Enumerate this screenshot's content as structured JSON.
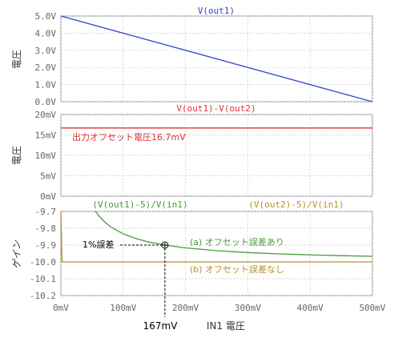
{
  "chart_data": [
    {
      "type": "line",
      "title": "V(out1)",
      "ylabel": "電圧",
      "ylim": [
        0,
        5
      ],
      "yticks": [
        0,
        1,
        2,
        3,
        4,
        5
      ],
      "ytick_labels": [
        "0.0V",
        "1.0V",
        "2.0V",
        "3.0V",
        "4.0V",
        "5.0V"
      ],
      "grid": true,
      "series": [
        {
          "name": "V(out1)",
          "color": "#3344cc",
          "points": [
            [
              0,
              5.0
            ],
            [
              500,
              0.0
            ]
          ]
        }
      ]
    },
    {
      "type": "line",
      "title": "V(out1)-V(out2)",
      "ylabel": "電圧",
      "ylim": [
        0,
        20
      ],
      "yticks": [
        0,
        5,
        10,
        15,
        20
      ],
      "ytick_labels": [
        "0mV",
        "5mV",
        "10mV",
        "15mV",
        "20mV"
      ],
      "grid": true,
      "annotation": "出力オフセット電圧16.7mV",
      "series": [
        {
          "name": "V(out1)-V(out2)",
          "color": "#dd3333",
          "points": [
            [
              0,
              16.7
            ],
            [
              500,
              16.7
            ]
          ]
        }
      ]
    },
    {
      "type": "line",
      "ylabel": "ゲイン",
      "ylim": [
        -10.2,
        -9.7
      ],
      "yticks": [
        -10.2,
        -10.1,
        -10.0,
        -9.9,
        -9.8,
        -9.7
      ],
      "ytick_labels": [
        "-10.2",
        "-10.1",
        "-10.0",
        "-9.9",
        "-9.8",
        "-9.7"
      ],
      "xlabel": "IN1 電圧",
      "xlim": [
        0,
        500
      ],
      "xticks": [
        0,
        100,
        200,
        300,
        400,
        500
      ],
      "xtick_labels": [
        "0mV",
        "100mV",
        "200mV",
        "300mV",
        "400mV",
        "500mV"
      ],
      "grid": true,
      "series": [
        {
          "name": "(V(out1)-5)/V(in1)",
          "color": "#4a9a3a",
          "gain_offset": 16.7,
          "x": [
            55,
            60,
            70,
            80,
            100,
            120,
            140,
            167,
            200,
            250,
            300,
            350,
            400,
            450,
            500
          ]
        },
        {
          "name": "(V(out2)-5)/V(in1)",
          "color": "#b8902a",
          "points": [
            [
              0,
              -9.7
            ],
            [
              2,
              -10.0
            ],
            [
              500,
              -10.0
            ]
          ]
        }
      ],
      "annotations": {
        "point_label": "1%誤差",
        "x_marker": "167mV",
        "marker_x": 167,
        "marker_y": -9.9,
        "label_a": "(a) オフセット誤差あり",
        "label_b": "(b) オフセット誤差なし"
      }
    }
  ]
}
